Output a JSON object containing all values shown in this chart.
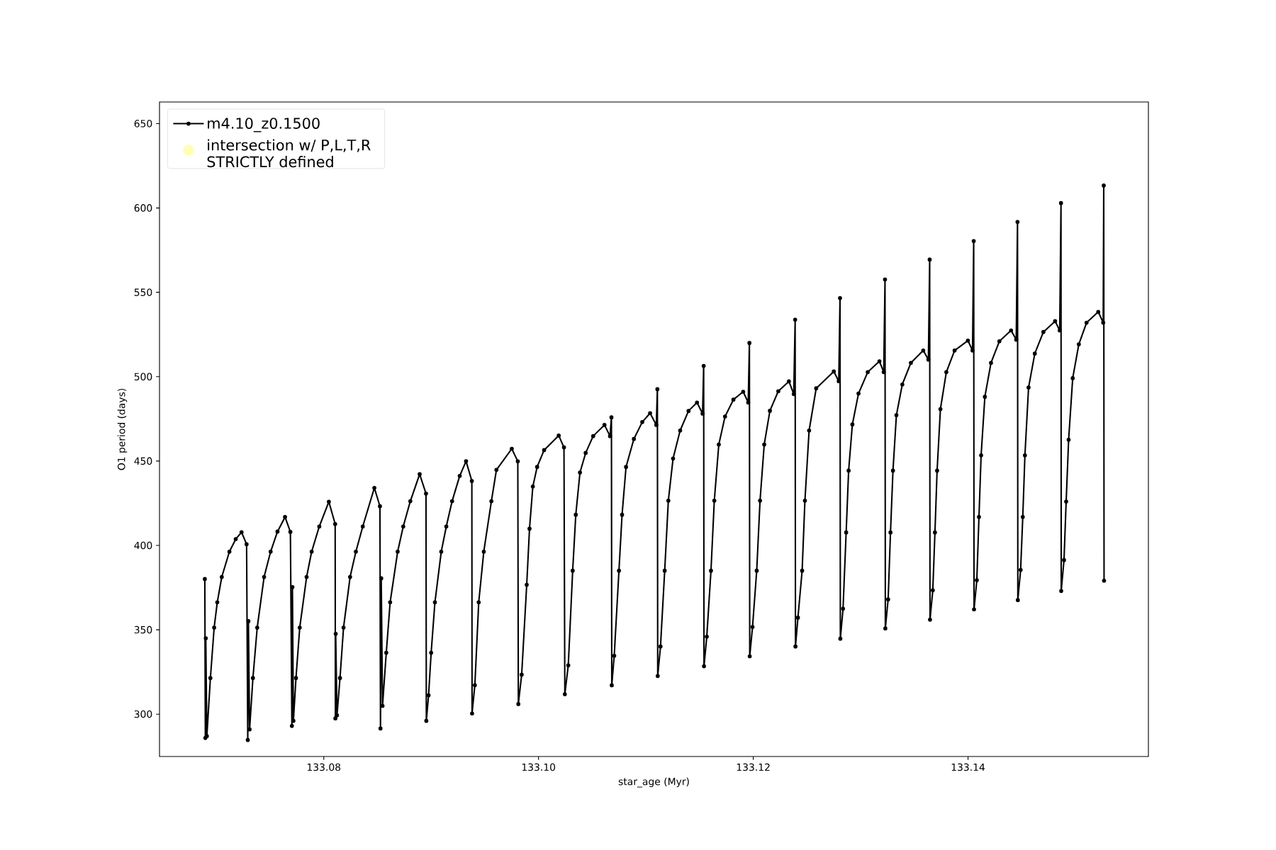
{
  "chart_data": {
    "type": "line",
    "xlabel": "star_age (Myr)",
    "ylabel": "O1 period (days)",
    "xlim": [
      133.0647,
      133.1568
    ],
    "ylim": [
      274.9,
      662.8
    ],
    "xticks": [
      133.08,
      {
        "value": 133.1,
        "label": "133.10"
      },
      133.12,
      133.14
    ],
    "yticks": [
      300,
      350,
      400,
      450,
      500,
      550,
      600,
      650
    ],
    "marker": "circle",
    "legend": "top left",
    "series": [
      {
        "name": "m4.10_z0.1500",
        "color": "#000000",
        "x": [
          133.06892,
          133.06897,
          133.06901,
          133.06911,
          133.06944,
          133.06979,
          133.07008,
          133.0705,
          133.07121,
          133.0718,
          133.07234,
          133.07281,
          133.07292,
          133.07298,
          133.07309,
          133.0734,
          133.0738,
          133.07444,
          133.07505,
          133.07569,
          133.07639,
          133.07689,
          133.07703,
          133.07708,
          133.07717,
          133.07741,
          133.07776,
          133.0784,
          133.07887,
          133.07958,
          133.08047,
          133.08106,
          133.08108,
          133.08111,
          133.08123,
          133.08151,
          133.08184,
          133.08245,
          133.08299,
          133.08363,
          133.08471,
          133.08523,
          133.08528,
          133.08535,
          133.08547,
          133.08582,
          133.08618,
          133.08688,
          133.0874,
          133.08806,
          133.08893,
          133.08952,
          133.08955,
          133.08976,
          133.09,
          133.09035,
          133.09094,
          133.09141,
          133.09195,
          133.09266,
          133.09325,
          133.09379,
          133.09381,
          133.09407,
          133.09443,
          133.0949,
          133.09561,
          133.09608,
          133.09751,
          133.09807,
          133.09812,
          133.09843,
          133.0989,
          133.09916,
          133.09947,
          133.09987,
          133.10052,
          133.10188,
          133.10237,
          133.10245,
          133.10277,
          133.10318,
          133.10347,
          133.10386,
          133.10439,
          133.10509,
          133.10614,
          133.10666,
          133.10679,
          133.10682,
          133.10705,
          133.10749,
          133.10778,
          133.10815,
          133.10888,
          133.10966,
          133.11039,
          133.11097,
          133.11107,
          133.1111,
          133.11136,
          133.11175,
          133.11209,
          133.11253,
          133.11319,
          133.11397,
          133.11476,
          133.11528,
          133.11538,
          133.11541,
          133.11567,
          133.11606,
          133.11637,
          133.11679,
          133.11737,
          133.11815,
          133.11906,
          133.11953,
          133.11964,
          133.11967,
          133.11993,
          133.12032,
          133.12063,
          133.12102,
          133.12155,
          133.12233,
          133.12332,
          133.12377,
          133.1239,
          133.12393,
          133.12416,
          133.12455,
          133.12481,
          133.1252,
          133.12586,
          133.1275,
          133.12796,
          133.12808,
          133.12811,
          133.12836,
          133.12865,
          133.12888,
          133.12923,
          133.1298,
          133.13066,
          133.13175,
          133.13215,
          133.13227,
          133.1323,
          133.13256,
          133.13278,
          133.13301,
          133.13333,
          133.13388,
          133.13468,
          133.13583,
          133.13631,
          133.13643,
          133.13646,
          133.13672,
          133.13692,
          133.13712,
          133.13743,
          133.13798,
          133.13875,
          133.13999,
          133.14042,
          133.14053,
          133.14056,
          133.14082,
          133.14102,
          133.14122,
          133.14157,
          133.14214,
          133.14292,
          133.14401,
          133.14449,
          133.14461,
          133.14464,
          133.1449,
          133.1451,
          133.1453,
          133.14564,
          133.14622,
          133.14702,
          133.14811,
          133.14854,
          133.14866,
          133.14868,
          133.14894,
          133.14914,
          133.14937,
          133.14975,
          133.15032,
          133.15104,
          133.15213,
          133.15259,
          133.15264,
          133.15267
        ],
        "values": [
          380.1,
          285.9,
          345.0,
          287.0,
          321.4,
          351.3,
          366.3,
          381.3,
          396.3,
          403.7,
          407.8,
          400.7,
          284.7,
          355.1,
          291.0,
          321.4,
          351.3,
          381.3,
          396.3,
          408.2,
          416.8,
          408.0,
          293.0,
          375.3,
          296.0,
          321.4,
          351.3,
          381.3,
          396.3,
          411.2,
          425.9,
          412.7,
          297.5,
          347.6,
          299.3,
          321.4,
          351.3,
          381.3,
          396.3,
          411.2,
          434.1,
          423.2,
          291.5,
          380.5,
          304.9,
          336.4,
          366.3,
          396.3,
          411.2,
          426.2,
          442.2,
          430.7,
          296.0,
          311.2,
          336.4,
          366.3,
          396.3,
          411.2,
          426.2,
          441.2,
          449.9,
          438.2,
          300.4,
          317.2,
          366.3,
          396.3,
          426.2,
          444.8,
          457.3,
          449.8,
          306.0,
          323.4,
          376.7,
          409.9,
          434.9,
          446.5,
          456.5,
          465.1,
          458.1,
          311.8,
          328.9,
          385.0,
          418.2,
          443.2,
          454.8,
          464.8,
          471.4,
          464.8,
          475.9,
          317.1,
          334.6,
          385.0,
          418.2,
          446.5,
          463.1,
          473.1,
          478.4,
          471.4,
          492.6,
          322.6,
          340.1,
          385.0,
          426.5,
          451.5,
          468.1,
          479.7,
          484.7,
          478.1,
          506.4,
          328.4,
          345.9,
          385.0,
          426.5,
          459.8,
          476.4,
          486.4,
          491.1,
          484.7,
          520.0,
          334.3,
          351.7,
          385.0,
          426.5,
          459.8,
          479.8,
          491.4,
          497.2,
          489.7,
          533.8,
          340.1,
          357.2,
          385.0,
          426.5,
          468.1,
          493.1,
          503.1,
          497.3,
          546.6,
          344.7,
          362.5,
          407.7,
          444.3,
          471.7,
          490.0,
          502.7,
          509.1,
          502.7,
          557.6,
          350.8,
          368.0,
          407.7,
          444.3,
          477.2,
          495.4,
          508.2,
          515.5,
          510.1,
          569.4,
          356.0,
          373.4,
          407.7,
          444.3,
          480.8,
          502.7,
          515.5,
          521.4,
          515.5,
          580.4,
          362.1,
          379.4,
          416.9,
          453.4,
          488.1,
          508.2,
          521.0,
          527.4,
          521.9,
          591.7,
          367.6,
          385.5,
          416.9,
          453.4,
          493.6,
          513.7,
          526.5,
          532.9,
          527.4,
          602.9,
          373.0,
          391.3,
          426.0,
          462.6,
          499.1,
          519.2,
          532.0,
          538.4,
          532.0,
          613.3,
          379.1
        ]
      },
      {
        "name": "intersection w/ P,L,T,R STRICTLY defined",
        "color": "#ffffb3",
        "type": "scatter"
      }
    ]
  }
}
